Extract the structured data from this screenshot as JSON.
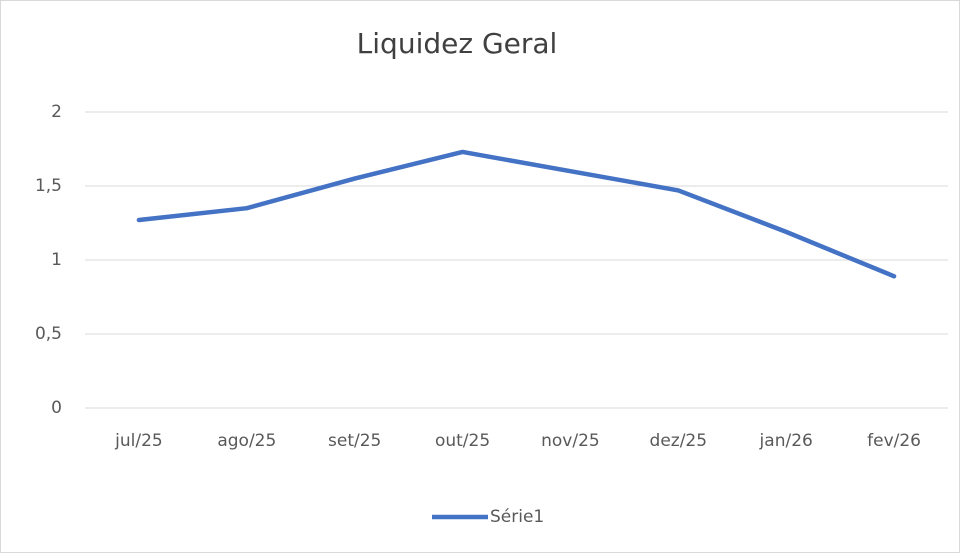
{
  "chart_data": {
    "type": "line",
    "title": "Liquidez Geral",
    "categories": [
      "jul/25",
      "ago/25",
      "set/25",
      "out/25",
      "nov/25",
      "dez/25",
      "jan/26",
      "fev/26"
    ],
    "series": [
      {
        "name": "Série1",
        "color": "#4472c4",
        "values": [
          1.27,
          1.35,
          1.55,
          1.73,
          1.6,
          1.47,
          1.19,
          0.89
        ]
      }
    ],
    "ylim": [
      0,
      2
    ],
    "yticks": [
      0,
      {
        "value": 0.5,
        "label": "0,5"
      },
      1,
      {
        "value": 1.5,
        "label": "1,5"
      },
      2
    ],
    "grid": true,
    "legend": "bottom"
  }
}
